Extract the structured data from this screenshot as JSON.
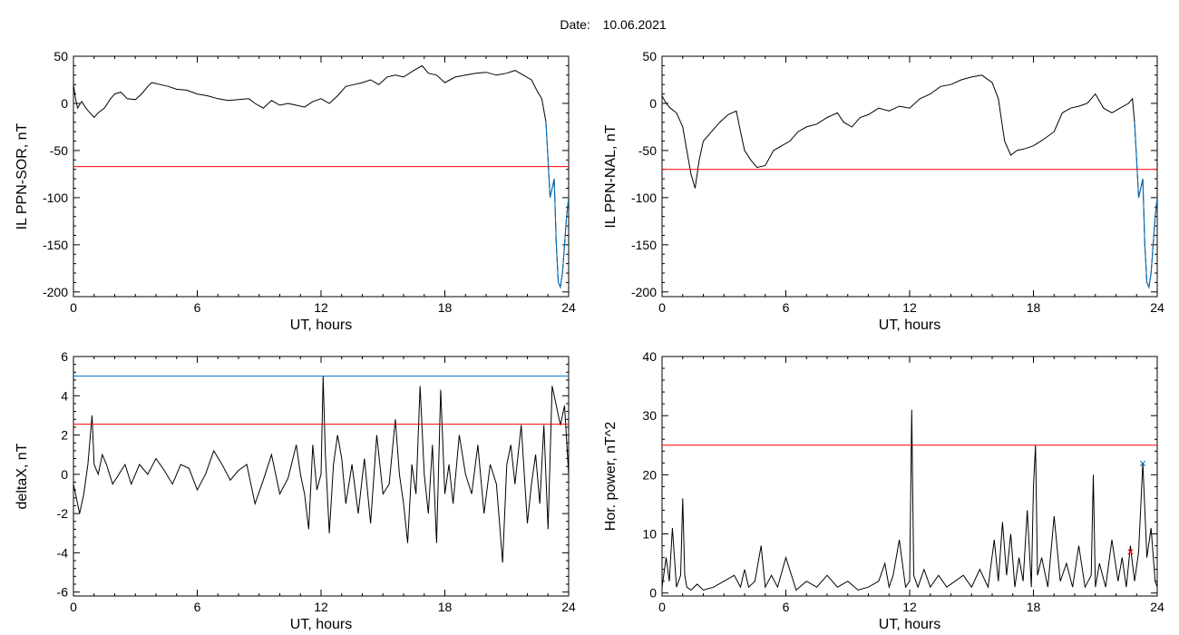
{
  "header": {
    "date_label": "Date:",
    "date_value": "10.06.2021"
  },
  "colors": {
    "trace": "#000000",
    "threshold": "#ff0000",
    "level": "#0070c0",
    "marker_blue": "#0070c0",
    "marker_red": "#ff0000"
  },
  "chart_data": [
    {
      "id": "top-left",
      "type": "line",
      "xlabel": "UT, hours",
      "ylabel": "IL PPN-SOR, nT",
      "xlim": [
        0,
        24
      ],
      "ylim": [
        -205,
        50
      ],
      "xticks": [
        0,
        6,
        12,
        18,
        24
      ],
      "yticks": [
        -200,
        -150,
        -100,
        -50,
        0,
        50
      ],
      "threshold": -67,
      "series": [
        {
          "color": "#000000",
          "x": [
            0,
            0.1,
            0.2,
            0.4,
            0.6,
            0.8,
            1.0,
            1.2,
            1.5,
            1.8,
            2.0,
            2.3,
            2.6,
            3.0,
            3.3,
            3.6,
            3.8,
            4.2,
            4.6,
            5.0,
            5.5,
            6.0,
            6.5,
            7.0,
            7.5,
            8.0,
            8.5,
            8.8,
            9.2,
            9.6,
            10.0,
            10.4,
            10.8,
            11.2,
            11.6,
            12.0,
            12.4,
            12.8,
            13.2,
            13.6,
            14.0,
            14.4,
            14.8,
            15.2,
            15.6,
            16.0,
            16.5,
            16.9,
            17.2,
            17.6,
            18.0,
            18.5,
            19.0,
            19.5,
            20.0,
            20.5,
            21.0,
            21.4,
            21.8,
            22.2,
            22.5,
            22.7,
            22.9,
            23.0,
            23.1,
            23.2,
            23.3,
            23.4,
            23.5,
            23.6,
            23.7,
            23.8,
            23.9,
            24.0
          ],
          "y": [
            20,
            5,
            -5,
            2,
            -5,
            -10,
            -15,
            -10,
            -5,
            5,
            10,
            12,
            5,
            4,
            10,
            18,
            22,
            20,
            18,
            15,
            14,
            10,
            8,
            5,
            3,
            4,
            5,
            0,
            -5,
            3,
            -2,
            0,
            -2,
            -4,
            2,
            5,
            0,
            8,
            18,
            20,
            22,
            25,
            20,
            28,
            30,
            28,
            35,
            40,
            32,
            30,
            22,
            28,
            30,
            32,
            33,
            30,
            32,
            35,
            30,
            25,
            12,
            5,
            -20,
            -60,
            -100,
            -90,
            -80,
            -150,
            -190,
            -195,
            -180,
            -150,
            -120,
            -100
          ]
        },
        {
          "color": "#0070c0",
          "x": [
            22.9,
            23.0,
            23.1,
            23.2,
            23.3,
            23.4,
            23.5,
            23.6,
            23.7,
            23.8,
            23.9,
            24.0
          ],
          "y": [
            -20,
            -60,
            -100,
            -90,
            -80,
            -150,
            -190,
            -195,
            -180,
            -150,
            -120,
            -100
          ]
        }
      ]
    },
    {
      "id": "top-right",
      "type": "line",
      "xlabel": "UT, hours",
      "ylabel": "IL PPN-NAL, nT",
      "xlim": [
        0,
        24
      ],
      "ylim": [
        -205,
        50
      ],
      "xticks": [
        0,
        6,
        12,
        18,
        24
      ],
      "yticks": [
        -200,
        -150,
        -100,
        -50,
        0,
        50
      ],
      "threshold": -70,
      "series": [
        {
          "color": "#000000",
          "x": [
            0,
            0.2,
            0.4,
            0.7,
            1.0,
            1.2,
            1.4,
            1.6,
            1.8,
            2.0,
            2.4,
            2.8,
            3.2,
            3.6,
            3.8,
            4.0,
            4.3,
            4.6,
            5.0,
            5.4,
            5.8,
            6.2,
            6.6,
            7.0,
            7.5,
            8.0,
            8.5,
            8.8,
            9.2,
            9.6,
            10.0,
            10.5,
            11.0,
            11.5,
            12.0,
            12.5,
            13.0,
            13.5,
            14.0,
            14.5,
            15.0,
            15.5,
            16.0,
            16.3,
            16.6,
            16.9,
            17.2,
            17.6,
            18.0,
            18.5,
            19.0,
            19.4,
            19.8,
            20.2,
            20.6,
            21.0,
            21.4,
            21.8,
            22.2,
            22.6,
            22.8,
            22.9,
            23.0,
            23.1,
            23.2,
            23.3,
            23.4,
            23.5,
            23.6,
            23.7,
            23.8,
            23.9,
            24.0
          ],
          "y": [
            8,
            0,
            -5,
            -10,
            -25,
            -50,
            -75,
            -90,
            -60,
            -40,
            -30,
            -20,
            -12,
            -8,
            -30,
            -50,
            -60,
            -68,
            -66,
            -50,
            -45,
            -40,
            -30,
            -25,
            -22,
            -15,
            -10,
            -20,
            -25,
            -15,
            -12,
            -5,
            -8,
            -3,
            -5,
            5,
            10,
            18,
            20,
            25,
            28,
            30,
            22,
            5,
            -40,
            -55,
            -50,
            -48,
            -45,
            -38,
            -30,
            -10,
            -5,
            -3,
            0,
            10,
            -5,
            -10,
            -5,
            0,
            5,
            -20,
            -60,
            -100,
            -90,
            -80,
            -150,
            -190,
            -195,
            -180,
            -150,
            -120,
            -100
          ]
        },
        {
          "color": "#0070c0",
          "x": [
            22.9,
            23.0,
            23.1,
            23.2,
            23.3,
            23.4,
            23.5,
            23.6,
            23.7,
            23.8,
            23.9,
            24.0
          ],
          "y": [
            -20,
            -60,
            -100,
            -90,
            -80,
            -150,
            -190,
            -195,
            -180,
            -150,
            -120,
            -100
          ]
        }
      ]
    },
    {
      "id": "bottom-left",
      "type": "line",
      "xlabel": "UT, hours",
      "ylabel": "deltaX, nT",
      "xlim": [
        0,
        24
      ],
      "ylim": [
        -6.2,
        6
      ],
      "xticks": [
        0,
        6,
        12,
        18,
        24
      ],
      "yticks": [
        -6,
        -4,
        -2,
        0,
        2,
        4,
        6
      ],
      "threshold": 2.55,
      "level": 5.0,
      "series": [
        {
          "color": "#000000",
          "x": [
            0,
            0.3,
            0.5,
            0.7,
            0.9,
            1.0,
            1.2,
            1.4,
            1.6,
            1.9,
            2.2,
            2.5,
            2.8,
            3.2,
            3.6,
            4.0,
            4.4,
            4.8,
            5.2,
            5.6,
            6.0,
            6.4,
            6.8,
            7.2,
            7.6,
            8.0,
            8.4,
            8.8,
            9.2,
            9.6,
            10.0,
            10.4,
            10.8,
            11.0,
            11.2,
            11.4,
            11.6,
            11.8,
            12.0,
            12.1,
            12.2,
            12.4,
            12.6,
            12.8,
            13.0,
            13.2,
            13.5,
            13.8,
            14.1,
            14.4,
            14.7,
            15.0,
            15.3,
            15.6,
            15.8,
            16.0,
            16.2,
            16.4,
            16.6,
            16.8,
            17.0,
            17.2,
            17.4,
            17.6,
            17.8,
            18.0,
            18.2,
            18.4,
            18.7,
            19.0,
            19.3,
            19.6,
            19.9,
            20.2,
            20.5,
            20.8,
            21.0,
            21.2,
            21.4,
            21.7,
            22.0,
            22.2,
            22.4,
            22.6,
            22.8,
            23.0,
            23.2,
            23.4,
            23.6,
            23.8,
            24.0
          ],
          "y": [
            -0.5,
            -2.0,
            -1.0,
            0.5,
            3.0,
            0.5,
            0.0,
            1.0,
            0.5,
            -0.5,
            0.0,
            0.5,
            -0.5,
            0.5,
            0.0,
            0.8,
            0.2,
            -0.5,
            0.5,
            0.3,
            -0.8,
            0.0,
            1.2,
            0.5,
            -0.3,
            0.2,
            0.5,
            -1.5,
            -0.3,
            1.0,
            -1.0,
            -0.2,
            1.5,
            0.0,
            -1.0,
            -2.8,
            1.5,
            -0.8,
            0.0,
            5.0,
            1.2,
            -3.0,
            0.5,
            2.0,
            0.8,
            -1.5,
            0.5,
            -2.0,
            0.8,
            -2.5,
            2.0,
            -1.0,
            -0.5,
            2.8,
            0.0,
            -1.5,
            -3.5,
            0.5,
            -1.0,
            4.5,
            0.0,
            -2.0,
            1.5,
            -3.5,
            4.3,
            -1.0,
            0.5,
            -1.5,
            2.0,
            0.0,
            -1.0,
            1.5,
            -2.0,
            0.5,
            -0.5,
            -4.5,
            0.5,
            1.5,
            -0.5,
            2.5,
            -2.5,
            -0.5,
            1.0,
            -1.5,
            2.5,
            -2.8,
            4.5,
            3.5,
            2.5,
            3.5,
            0.0
          ]
        }
      ]
    },
    {
      "id": "bottom-right",
      "type": "line",
      "xlabel": "UT, hours",
      "ylabel": "Hor. power, nT^2",
      "xlim": [
        0,
        24
      ],
      "ylim": [
        -0.5,
        40
      ],
      "xticks": [
        0,
        6,
        12,
        18,
        24
      ],
      "yticks": [
        0,
        10,
        20,
        30,
        40
      ],
      "threshold": 25.0,
      "markers": [
        {
          "x": 23.3,
          "y": 22.0,
          "symbol": "×",
          "color": "#0070c0"
        },
        {
          "x": 22.7,
          "y": 7.0,
          "symbol": "×",
          "color": "#ff0000"
        }
      ],
      "series": [
        {
          "color": "#000000",
          "x": [
            0,
            0.2,
            0.35,
            0.5,
            0.7,
            0.9,
            1.0,
            1.1,
            1.2,
            1.4,
            1.7,
            2.0,
            2.5,
            3.0,
            3.5,
            3.8,
            4.0,
            4.2,
            4.5,
            4.8,
            5.0,
            5.3,
            5.6,
            6.0,
            6.5,
            7.0,
            7.5,
            8.0,
            8.5,
            9.0,
            9.5,
            10.0,
            10.5,
            10.8,
            11.0,
            11.2,
            11.5,
            11.8,
            12.0,
            12.1,
            12.2,
            12.4,
            12.7,
            13.0,
            13.4,
            13.8,
            14.2,
            14.6,
            15.0,
            15.4,
            15.8,
            16.1,
            16.3,
            16.5,
            16.7,
            16.9,
            17.1,
            17.3,
            17.5,
            17.7,
            17.9,
            18.0,
            18.1,
            18.2,
            18.4,
            18.7,
            19.0,
            19.3,
            19.6,
            19.9,
            20.2,
            20.5,
            20.8,
            20.9,
            21.0,
            21.2,
            21.5,
            21.8,
            22.1,
            22.3,
            22.5,
            22.7,
            22.9,
            23.1,
            23.3,
            23.5,
            23.7,
            23.9,
            24.0
          ],
          "y": [
            1.0,
            6.0,
            2.0,
            11.0,
            1.0,
            3.0,
            16.0,
            3.0,
            1.0,
            0.5,
            1.5,
            0.5,
            1.0,
            2.0,
            3.0,
            1.0,
            4.0,
            1.0,
            2.0,
            8.0,
            1.0,
            3.0,
            1.0,
            6.0,
            0.5,
            2.0,
            1.0,
            3.0,
            1.0,
            2.0,
            0.5,
            1.0,
            2.0,
            5.0,
            1.0,
            3.0,
            9.0,
            1.0,
            2.0,
            31.0,
            3.0,
            1.0,
            4.0,
            1.0,
            3.0,
            1.0,
            2.0,
            3.0,
            1.0,
            4.0,
            1.0,
            9.0,
            2.0,
            12.0,
            3.0,
            10.0,
            1.0,
            6.0,
            2.0,
            14.0,
            1.0,
            18.0,
            25.0,
            3.0,
            6.0,
            1.0,
            13.0,
            2.0,
            5.0,
            1.0,
            8.0,
            1.0,
            3.0,
            20.0,
            1.0,
            5.0,
            1.0,
            9.0,
            2.0,
            6.0,
            1.0,
            8.0,
            2.0,
            7.0,
            22.0,
            6.0,
            11.0,
            2.0,
            1.0
          ]
        }
      ]
    }
  ]
}
